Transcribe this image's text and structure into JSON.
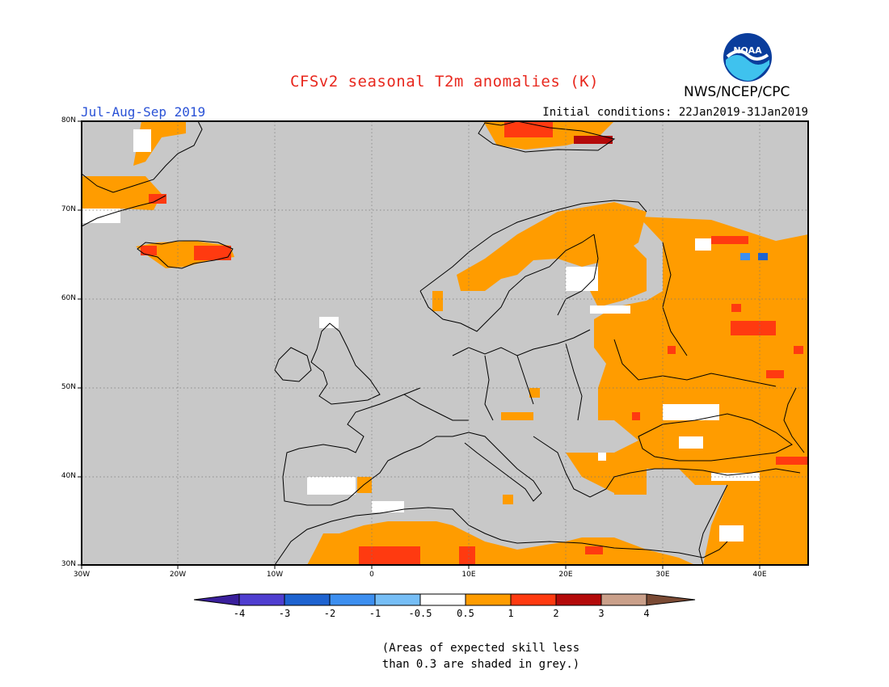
{
  "title": "CFSv2 seasonal T2m anomalies (K)",
  "agency": "NWS/NCEP/CPC",
  "logo_text": "NOAA",
  "season": "Jul-Aug-Sep 2019",
  "initial_conditions": "Initial conditions: 22Jan2019-31Jan2019",
  "colors": {
    "title": "#e8281e",
    "season": "#2a52d6",
    "skill_grey": "#c8c8c8",
    "land_line": "#000000",
    "bins": [
      "#3a1f9c",
      "#4f3ed0",
      "#1e63d0",
      "#3d8ff0",
      "#76bef6",
      "#ffffff",
      "#ff9c00",
      "#ff3a10",
      "#b40a0a",
      "#caa08a",
      "#7a4a34"
    ]
  },
  "lat_labels": [
    "80N",
    "70N",
    "60N",
    "50N",
    "40N",
    "30N"
  ],
  "lon_labels": [
    "30W",
    "20W",
    "10W",
    "0",
    "10E",
    "20E",
    "30E",
    "40E"
  ],
  "colorbar_labels": [
    "-4",
    "-3",
    "-2",
    "-1",
    "-0.5",
    "0.5",
    "1",
    "2",
    "3",
    "4"
  ],
  "note_line1": "(Areas of expected skill less",
  "note_line2": "than 0.3 are shaded in grey.)"
}
